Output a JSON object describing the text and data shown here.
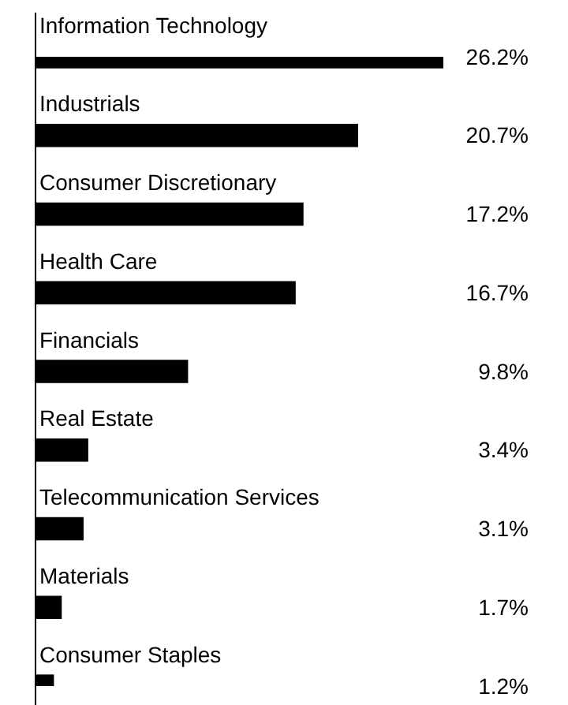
{
  "chart_data": {
    "type": "bar",
    "orientation": "horizontal",
    "categories": [
      "Information Technology",
      "Industrials",
      "Consumer Discretionary",
      "Health Care",
      "Financials",
      "Real Estate",
      "Telecommunication Services",
      "Materials",
      "Consumer Staples"
    ],
    "values": [
      26.2,
      20.7,
      17.2,
      16.7,
      9.8,
      3.4,
      3.1,
      1.7,
      1.2
    ],
    "value_labels": [
      "26.2%",
      "20.7%",
      "17.2%",
      "16.7%",
      "9.8%",
      "3.4%",
      "3.1%",
      "1.7%",
      "1.2%"
    ],
    "color": "#000000"
  }
}
